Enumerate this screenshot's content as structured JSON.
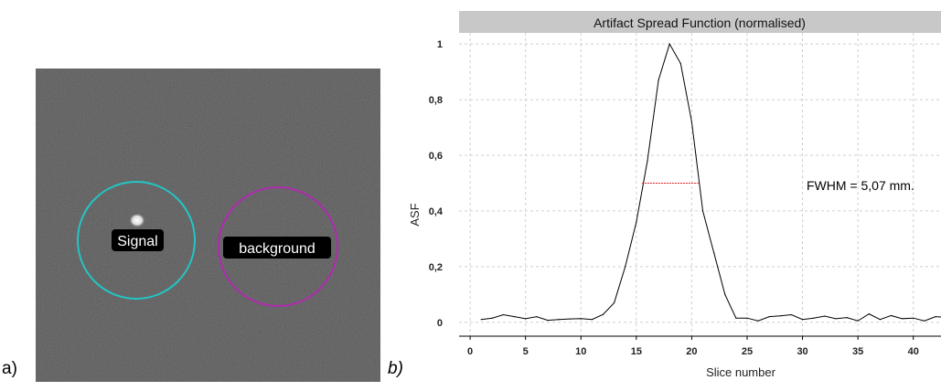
{
  "labels": {
    "panel_a": "a)",
    "panel_b": "b)"
  },
  "image_panel": {
    "roi_signal_label": "Signal",
    "roi_background_label": "background",
    "colors": {
      "background": "#3a3a3a",
      "signal_circle": "#22c6c6",
      "background_circle": "#b02bb0",
      "label_box": "#000000",
      "label_text": "#ffffff"
    }
  },
  "chart_data": {
    "type": "line",
    "title": "Artifact Spread Function (normalised)",
    "xlabel": "Slice number",
    "ylabel": "ASF",
    "xlim": [
      -1,
      42.5
    ],
    "ylim": [
      -0.05,
      1.04
    ],
    "x_ticks": [
      0,
      5,
      10,
      15,
      20,
      25,
      30,
      35,
      40
    ],
    "y_ticks": [
      0,
      0.2,
      0.4,
      0.6,
      0.8,
      1
    ],
    "y_tick_labels": [
      "0",
      "0,2",
      "0,4",
      "0,6",
      "0,8",
      "1"
    ],
    "grid": true,
    "x": [
      1,
      2,
      3,
      4,
      5,
      6,
      7,
      8,
      9,
      10,
      11,
      12,
      13,
      14,
      15,
      16,
      17,
      18,
      19,
      20,
      21,
      22,
      23,
      24,
      25,
      26,
      27,
      28,
      29,
      30,
      31,
      32,
      33,
      34,
      35,
      36,
      37,
      38,
      39,
      40,
      41,
      42,
      43
    ],
    "y": [
      0.01,
      0.015,
      0.027,
      0.02,
      0.013,
      0.02,
      0.007,
      0.01,
      0.012,
      0.013,
      0.01,
      0.028,
      0.07,
      0.2,
      0.36,
      0.58,
      0.87,
      1.0,
      0.93,
      0.72,
      0.4,
      0.25,
      0.1,
      0.015,
      0.015,
      0.005,
      0.02,
      0.023,
      0.027,
      0.01,
      0.015,
      0.022,
      0.013,
      0.017,
      0.005,
      0.03,
      0.01,
      0.024,
      0.013,
      0.015,
      0.005,
      0.02,
      0.018
    ],
    "fwhm": {
      "y": 0.5,
      "x_start": 15.5,
      "x_end": 20.6,
      "label": "FWHM = 5,07 mm."
    },
    "colors": {
      "line": "#000000",
      "fwhm_line": "#e02020",
      "grid": "#cfcfcf",
      "title_bar": "#c8c8c8"
    }
  }
}
